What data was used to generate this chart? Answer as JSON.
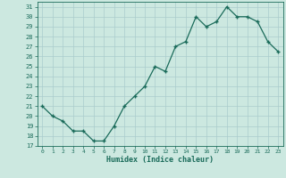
{
  "x": [
    0,
    1,
    2,
    3,
    4,
    5,
    6,
    7,
    8,
    9,
    10,
    11,
    12,
    13,
    14,
    15,
    16,
    17,
    18,
    19,
    20,
    21,
    22,
    23
  ],
  "y": [
    21,
    20,
    19.5,
    18.5,
    18.5,
    17.5,
    17.5,
    19,
    21,
    22,
    23,
    25,
    24.5,
    27,
    27.5,
    30,
    29,
    29.5,
    31,
    30,
    30,
    29.5,
    27.5,
    26.5
  ],
  "xlabel": "Humidex (Indice chaleur)",
  "ylim": [
    17,
    31.5
  ],
  "xlim": [
    -0.5,
    23.5
  ],
  "yticks": [
    17,
    18,
    19,
    20,
    21,
    22,
    23,
    24,
    25,
    26,
    27,
    28,
    29,
    30,
    31
  ],
  "xticks": [
    0,
    1,
    2,
    3,
    4,
    5,
    6,
    7,
    8,
    9,
    10,
    11,
    12,
    13,
    14,
    15,
    16,
    17,
    18,
    19,
    20,
    21,
    22,
    23
  ],
  "line_color": "#1a6b5a",
  "marker_color": "#1a6b5a",
  "bg_color": "#cce8e0",
  "grid_color": "#aacccc",
  "label_color": "#1a6b5a",
  "tick_color": "#1a6b5a",
  "font_family": "monospace"
}
